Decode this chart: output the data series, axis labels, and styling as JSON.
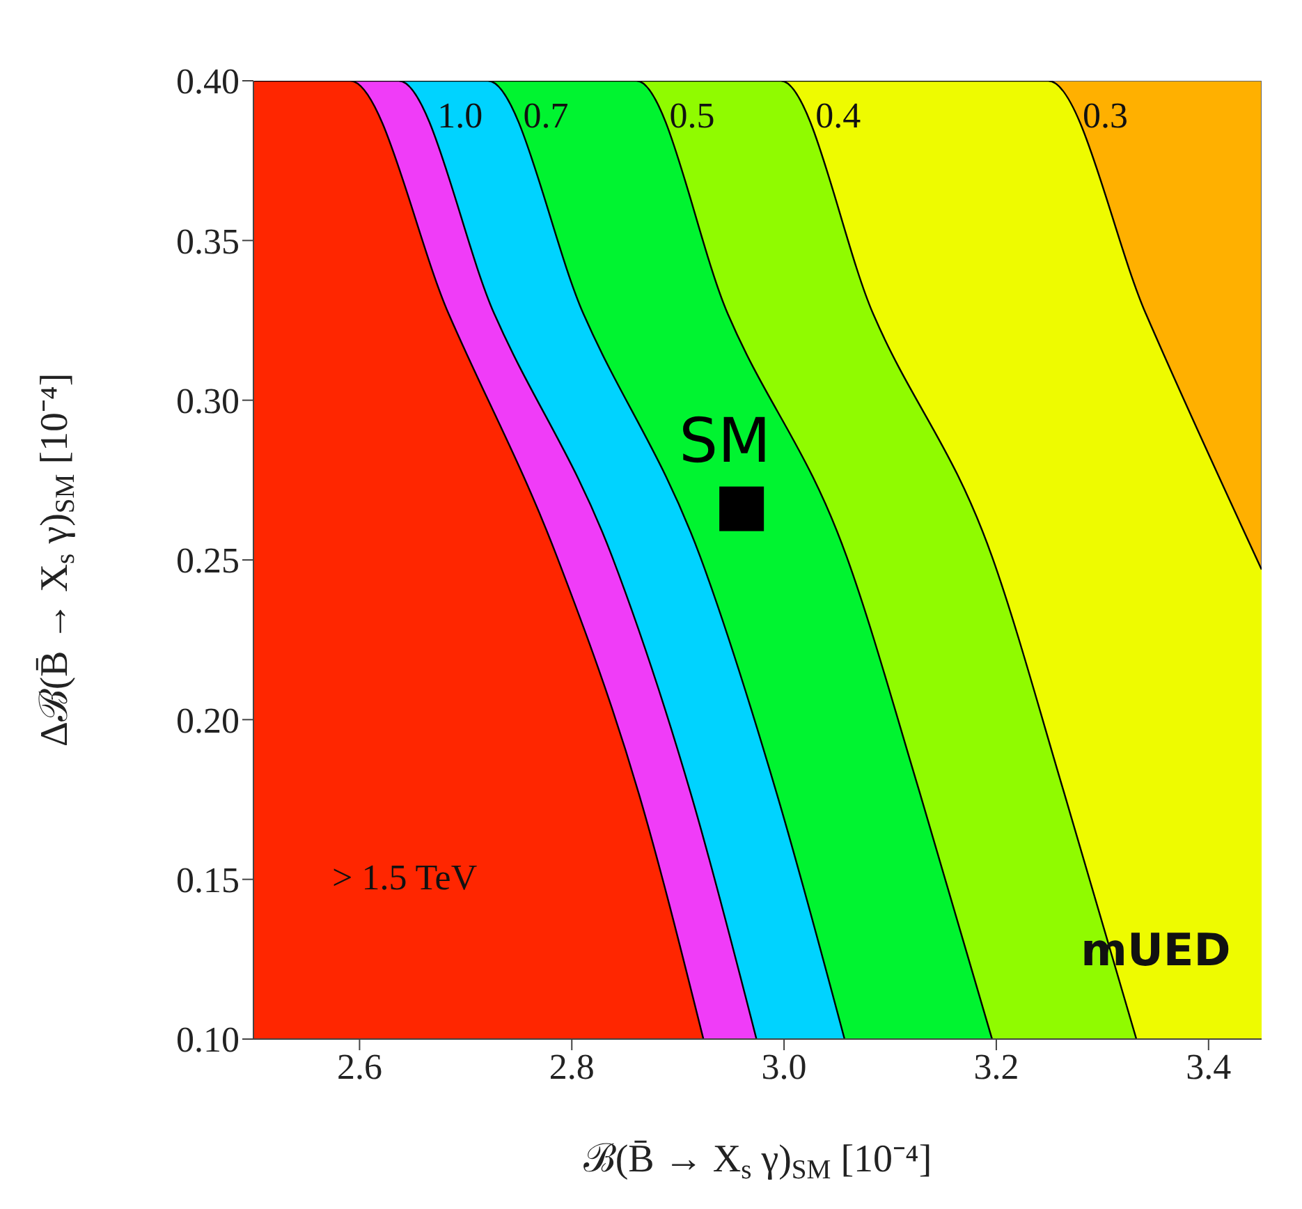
{
  "chart_data": {
    "type": "area",
    "xlabel": "ℬ(B̄ → X$_{s}$γ)$_{SM}$ [10⁻⁴]",
    "ylabel": "Δℬ(B̄ → X$_{s}$γ)$_{SM}$ [10⁻⁴]",
    "color": "#ffb000",
    "xlim": [
      2.5,
      3.45
    ],
    "ylim": [
      0.1,
      0.4
    ],
    "xticks": [
      2.6,
      2.8,
      {
        "value": 3,
        "label": "3.0"
      },
      3.2,
      3.4
    ],
    "yticks": [
      {
        "value": 0.1,
        "label": "0.10"
      },
      0.15,
      {
        "value": 0.2,
        "label": "0.20"
      },
      0.25,
      {
        "value": 0.3,
        "label": "0.30"
      },
      0.35,
      {
        "value": 0.4,
        "label": "0.40"
      }
    ],
    "series": [
      {
        "color": "#eefb00",
        "x": [
          2.5,
          3.249,
          3.341,
          3.45
        ],
        "values": [
          0.4,
          0.4,
          0.327,
          0.247
        ]
      },
      {
        "color": "#90fb00",
        "x": [
          2.5,
          2.997,
          3.084,
          3.196,
          3.264,
          3.332
        ],
        "values": [
          0.4,
          0.4,
          0.327,
          0.251,
          0.177,
          0.1
        ]
      },
      {
        "color": "#00f430",
        "x": [
          2.5,
          2.861,
          2.947,
          3.059,
          3.128,
          3.196
        ],
        "values": [
          0.4,
          0.4,
          0.327,
          0.251,
          0.177,
          0.1
        ]
      },
      {
        "color": "#00d3ff",
        "x": [
          2.5,
          2.721,
          2.811,
          2.921,
          2.993,
          3.057
        ],
        "values": [
          0.4,
          0.4,
          0.327,
          0.251,
          0.177,
          0.1
        ]
      },
      {
        "color": "#f03cf8",
        "x": [
          2.5,
          2.637,
          2.727,
          2.838,
          2.912,
          2.974
        ],
        "values": [
          0.4,
          0.4,
          0.327,
          0.251,
          0.177,
          0.1
        ]
      },
      {
        "color": "#ff2600",
        "x": [
          2.5,
          2.591,
          2.684,
          2.786,
          2.863,
          2.924
        ],
        "values": [
          0.4,
          0.4,
          0.327,
          0.251,
          0.177,
          0.1
        ]
      },
      {
        "type": "scatter",
        "name": "SM",
        "color": "#000000",
        "marker": "square",
        "x": [
          2.96
        ],
        "values": [
          0.266
        ]
      }
    ],
    "annotations": [
      "1.0",
      "0.7",
      "0.5",
      "0.4",
      "0.3",
      "> 1.5 TeV",
      "mUED"
    ]
  }
}
